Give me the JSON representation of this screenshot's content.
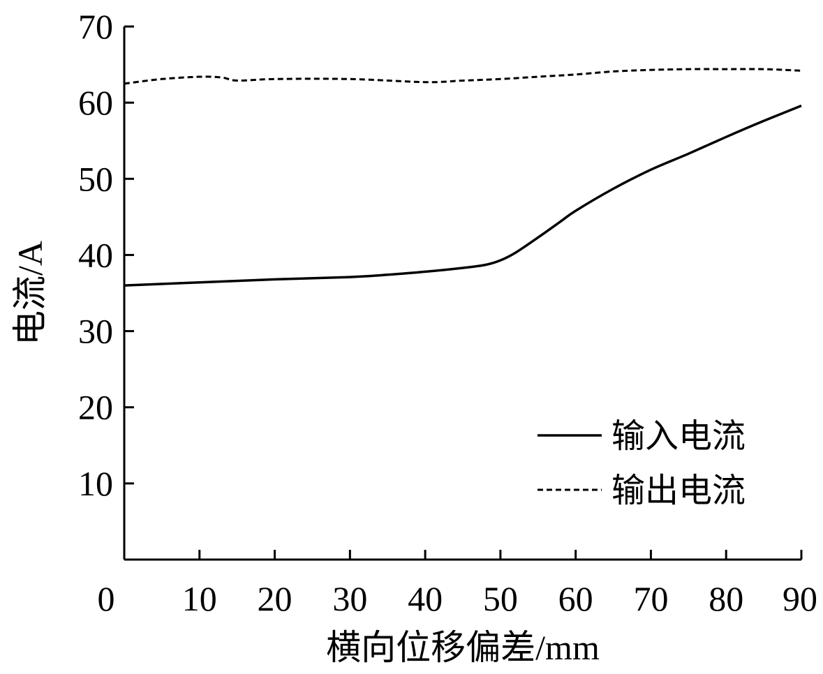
{
  "chart_data": {
    "type": "line",
    "xlabel": "横向位移偏差/mm",
    "ylabel": "电流/A",
    "xlim": [
      0,
      90
    ],
    "ylim": [
      0,
      70
    ],
    "x_ticks": [
      0,
      10,
      20,
      30,
      40,
      50,
      60,
      70,
      80,
      90
    ],
    "y_ticks": [
      10,
      20,
      30,
      40,
      50,
      60,
      70
    ],
    "grid": false,
    "legend_position": "bottom-right",
    "series": [
      {
        "name": "输入电流",
        "style": "solid",
        "color": "#000000",
        "x": [
          0,
          10,
          20,
          30,
          35,
          40,
          45,
          48,
          50,
          52,
          55,
          58,
          60,
          65,
          70,
          75,
          80,
          85,
          90
        ],
        "y": [
          36.0,
          36.4,
          36.8,
          37.1,
          37.4,
          37.8,
          38.3,
          38.7,
          39.3,
          40.3,
          42.3,
          44.4,
          45.8,
          48.7,
          51.2,
          53.3,
          55.5,
          57.6,
          59.6
        ]
      },
      {
        "name": "输出电流",
        "style": "dashed",
        "color": "#000000",
        "x": [
          0,
          5,
          10,
          13,
          15,
          20,
          30,
          40,
          45,
          50,
          55,
          60,
          65,
          70,
          75,
          80,
          85,
          90
        ],
        "y": [
          62.5,
          63.1,
          63.4,
          63.3,
          62.9,
          63.1,
          63.1,
          62.7,
          62.9,
          63.1,
          63.4,
          63.7,
          64.1,
          64.3,
          64.4,
          64.4,
          64.4,
          64.2
        ]
      }
    ]
  }
}
